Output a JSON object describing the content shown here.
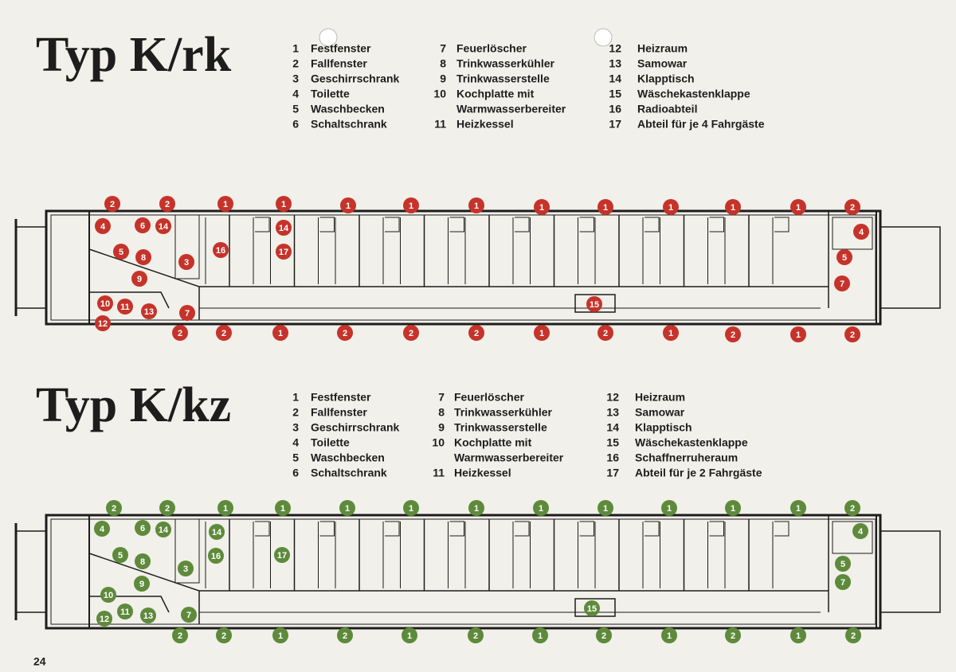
{
  "sections": [
    {
      "title": "Typ K/rk",
      "legend": [
        {
          "number": "1",
          "text": [
            "Festfenster"
          ]
        },
        {
          "number": "2",
          "text": [
            "Fallfenster"
          ]
        },
        {
          "number": "3",
          "text": [
            "Geschirrschrank"
          ]
        },
        {
          "number": "4",
          "text": [
            "Toilette"
          ]
        },
        {
          "number": "5",
          "text": [
            "Waschbecken"
          ]
        },
        {
          "number": "6",
          "text": [
            "Schaltschrank"
          ]
        },
        {
          "number": "7",
          "text": [
            "Feuerlöscher"
          ]
        },
        {
          "number": "8",
          "text": [
            "Trinkwasserkühler"
          ]
        },
        {
          "number": "9",
          "text": [
            "Trinkwasserstelle"
          ]
        },
        {
          "number": "10",
          "text": [
            "Kochplatte mit",
            "Warmwasserbereiter"
          ]
        },
        {
          "number": "11",
          "text": [
            "Heizkessel"
          ]
        },
        {
          "number": "12",
          "text": [
            "Heizraum"
          ]
        },
        {
          "number": "13",
          "text": [
            "Samowar"
          ]
        },
        {
          "number": "14",
          "text": [
            "Klapptisch"
          ]
        },
        {
          "number": "15",
          "text": [
            "Wäschekastenklappe"
          ]
        },
        {
          "number": "16",
          "text": [
            "Radioabteil"
          ]
        },
        {
          "number": "17",
          "text": [
            "Abteil für je 4 Fahrgäste"
          ]
        }
      ],
      "markers": [
        "2",
        "2",
        "1",
        "1",
        "1",
        "1",
        "1",
        "1",
        "1",
        "1",
        "1",
        "1",
        "2",
        "4",
        "6",
        "14",
        "14",
        "5",
        "8",
        "3",
        "16",
        "17",
        "9",
        "10",
        "11",
        "13",
        "12",
        "7",
        "15",
        "4",
        "5",
        "7",
        "2",
        "2",
        "1",
        "2",
        "2",
        "2",
        "1",
        "2",
        "1",
        "2",
        "1",
        "2"
      ]
    },
    {
      "title": "Typ K/kz",
      "legend": [
        {
          "number": "1",
          "text": [
            "Festfenster"
          ]
        },
        {
          "number": "2",
          "text": [
            "Fallfenster"
          ]
        },
        {
          "number": "3",
          "text": [
            "Geschirrschrank"
          ]
        },
        {
          "number": "4",
          "text": [
            "Toilette"
          ]
        },
        {
          "number": "5",
          "text": [
            "Waschbecken"
          ]
        },
        {
          "number": "6",
          "text": [
            "Schaltschrank"
          ]
        },
        {
          "number": "7",
          "text": [
            "Feuerlöscher"
          ]
        },
        {
          "number": "8",
          "text": [
            "Trinkwasserkühler"
          ]
        },
        {
          "number": "9",
          "text": [
            "Trinkwasserstelle"
          ]
        },
        {
          "number": "10",
          "text": [
            "Kochplatte mit",
            "Warmwasserbereiter"
          ]
        },
        {
          "number": "11",
          "text": [
            "Heizkessel"
          ]
        },
        {
          "number": "12",
          "text": [
            "Heizraum"
          ]
        },
        {
          "number": "13",
          "text": [
            "Samowar"
          ]
        },
        {
          "number": "14",
          "text": [
            "Klapptisch"
          ]
        },
        {
          "number": "15",
          "text": [
            "Wäschekastenklappe"
          ]
        },
        {
          "number": "16",
          "text": [
            "Schaffnerruheraum"
          ]
        },
        {
          "number": "17",
          "text": [
            "Abteil für je 2 Fahrgäste"
          ]
        }
      ],
      "markers": [
        "2",
        "2",
        "1",
        "1",
        "1",
        "1",
        "1",
        "1",
        "1",
        "1",
        "1",
        "1",
        "2",
        "4",
        "6",
        "14",
        "14",
        "5",
        "8",
        "3",
        "16",
        "17",
        "9",
        "10",
        "11",
        "13",
        "12",
        "7",
        "15",
        "4",
        "5",
        "7",
        "2",
        "2",
        "1",
        "2",
        "1",
        "2",
        "1",
        "2",
        "1",
        "2",
        "1",
        "2"
      ]
    }
  ],
  "page_number": "24"
}
